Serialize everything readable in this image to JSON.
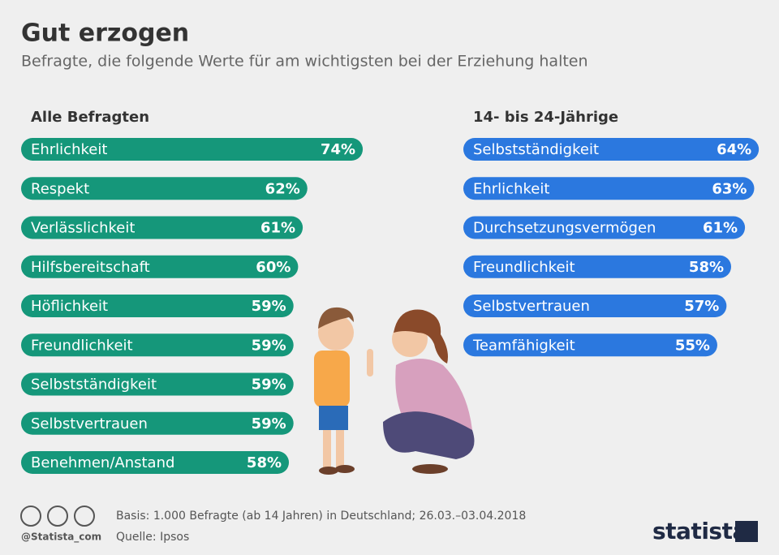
{
  "header": {
    "title": "Gut erzogen",
    "subtitle": "Befragte, die folgende Werte für am wichtigsten bei der Erziehung halten"
  },
  "chart_data": [
    {
      "type": "bar",
      "orientation": "horizontal",
      "title": "Alle Befragten",
      "color": "#15977a",
      "categories": [
        "Ehrlichkeit",
        "Respekt",
        "Verlässlichkeit",
        "Hilfsbereitschaft",
        "Höflichkeit",
        "Freundlichkeit",
        "Selbstständigkeit",
        "Selbstvertrauen",
        "Benehmen/Anstand"
      ],
      "values": [
        74,
        62,
        61,
        60,
        59,
        59,
        59,
        59,
        58
      ],
      "value_labels": [
        "74%",
        "62%",
        "61%",
        "60%",
        "59%",
        "59%",
        "59%",
        "59%",
        "58%"
      ]
    },
    {
      "type": "bar",
      "orientation": "horizontal",
      "title": "14- bis 24-Jährige",
      "color": "#2b78df",
      "categories": [
        "Selbstständigkeit",
        "Ehrlichkeit",
        "Durchsetzungsvermögen",
        "Freundlichkeit",
        "Selbstvertrauen",
        "Teamfähigkeit"
      ],
      "values": [
        64,
        63,
        61,
        58,
        57,
        55
      ],
      "value_labels": [
        "64%",
        "63%",
        "61%",
        "58%",
        "57%",
        "55%"
      ]
    }
  ],
  "footer": {
    "handle": "@Statista_com",
    "basis": "Basis: 1.000 Befragte (ab 14 Jahren) in Deutschland; 26.03.–03.04.2018",
    "source": "Quelle: Ipsos",
    "logo": "statista"
  }
}
